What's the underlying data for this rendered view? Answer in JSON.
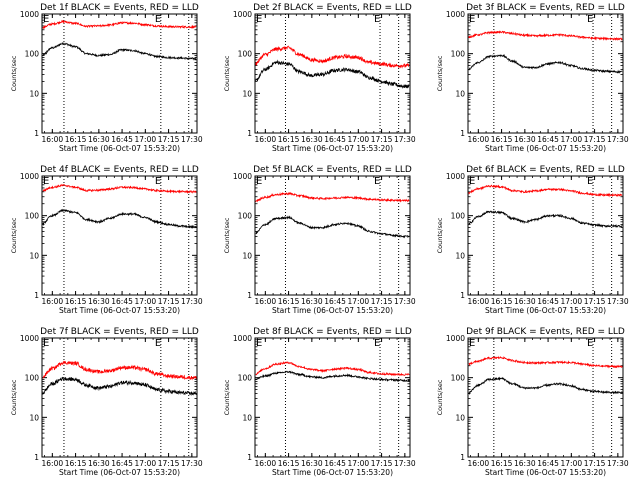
{
  "figure": {
    "ylabel": "Counts/sec",
    "xlabel": "Start Time (06-Oct-07 15:53:20)",
    "flag_labels": [
      "E",
      "E"
    ]
  },
  "colors": {
    "events": "#000000",
    "lld": "#ff0000",
    "axes": "#000000",
    "background": "#ffffff"
  },
  "chart_data": [
    {
      "type": "line",
      "title": "Det 1f BLACK = Events, RED = LLD",
      "xlabel": "Start Time (06-Oct-07 15:53:20)",
      "ylabel": "Counts/sec",
      "yscale": "log",
      "ylim": [
        1,
        1000
      ],
      "xlim": [
        "15:53:20",
        "17:33:20"
      ],
      "xticks": [
        "16:00",
        "16:15",
        "16:30",
        "16:45",
        "17:00",
        "17:15",
        "17:30"
      ],
      "yticks": [
        "1",
        "10",
        "100",
        "1000"
      ],
      "markers": [
        "16:07:30",
        "17:10:00",
        "17:28:00"
      ],
      "grid": false,
      "x": [
        "15:53",
        "16:00",
        "16:07",
        "16:15",
        "16:22",
        "16:30",
        "16:37",
        "16:45",
        "16:52",
        "17:00",
        "17:07",
        "17:15",
        "17:22",
        "17:30"
      ],
      "series": [
        {
          "name": "Events",
          "values": [
            90,
            140,
            180,
            150,
            100,
            90,
            95,
            125,
            120,
            100,
            85,
            80,
            78,
            75
          ]
        },
        {
          "name": "LLD",
          "values": [
            450,
            560,
            640,
            580,
            490,
            500,
            530,
            600,
            590,
            540,
            500,
            480,
            475,
            470
          ]
        }
      ]
    },
    {
      "type": "line",
      "title": "Det 2f BLACK = Events, RED = LLD",
      "xlabel": "Start Time (06-Oct-07 15:53:20)",
      "ylabel": "Counts/sec",
      "yscale": "log",
      "ylim": [
        1,
        1000
      ],
      "xlim": [
        "15:53:20",
        "17:33:20"
      ],
      "xticks": [
        "16:00",
        "16:15",
        "16:30",
        "16:45",
        "17:00",
        "17:15",
        "17:30"
      ],
      "yticks": [
        "1",
        "10",
        "100",
        "1000"
      ],
      "markers": [
        "16:13:00",
        "17:14:00",
        "17:26:00"
      ],
      "grid": false,
      "x": [
        "15:53",
        "16:00",
        "16:07",
        "16:15",
        "16:22",
        "16:30",
        "16:37",
        "16:45",
        "16:52",
        "17:00",
        "17:07",
        "17:15",
        "17:22",
        "17:30"
      ],
      "series": [
        {
          "name": "Events",
          "values": [
            20,
            40,
            60,
            55,
            35,
            28,
            30,
            38,
            40,
            35,
            25,
            20,
            17,
            15
          ]
        },
        {
          "name": "LLD",
          "values": [
            55,
            95,
            130,
            140,
            95,
            70,
            65,
            80,
            85,
            80,
            60,
            55,
            50,
            50
          ]
        }
      ]
    },
    {
      "type": "line",
      "title": "Det 3f BLACK = Events, RED = LLD",
      "xlabel": "Start Time (06-Oct-07 15:53:20)",
      "ylabel": "Counts/sec",
      "yscale": "log",
      "ylim": [
        1,
        1000
      ],
      "xlim": [
        "15:53:20",
        "17:33:20"
      ],
      "xticks": [
        "16:00",
        "16:15",
        "16:30",
        "16:45",
        "17:00",
        "17:15",
        "17:30"
      ],
      "yticks": [
        "1",
        "10",
        "100",
        "1000"
      ],
      "markers": [
        "16:10:00",
        "17:14:00",
        "17:26:00"
      ],
      "grid": false,
      "x": [
        "15:53",
        "16:00",
        "16:07",
        "16:15",
        "16:22",
        "16:30",
        "16:37",
        "16:45",
        "16:52",
        "17:00",
        "17:07",
        "17:15",
        "17:22",
        "17:30"
      ],
      "series": [
        {
          "name": "Events",
          "values": [
            40,
            60,
            85,
            90,
            65,
            45,
            45,
            55,
            60,
            50,
            42,
            38,
            36,
            35
          ]
        },
        {
          "name": "LLD",
          "values": [
            260,
            300,
            340,
            350,
            320,
            290,
            280,
            290,
            300,
            280,
            260,
            245,
            240,
            235
          ]
        }
      ]
    },
    {
      "type": "line",
      "title": "Det 4f BLACK = Events, RED = LLD",
      "xlabel": "Start Time (06-Oct-07 15:53:20)",
      "ylabel": "Counts/sec",
      "yscale": "log",
      "ylim": [
        1,
        1000
      ],
      "xlim": [
        "15:53:20",
        "17:33:20"
      ],
      "xticks": [
        "16:00",
        "16:15",
        "16:30",
        "16:45",
        "17:00",
        "17:15",
        "17:30"
      ],
      "yticks": [
        "1",
        "10",
        "100",
        "1000"
      ],
      "markers": [
        "16:07:30",
        "17:10:00",
        "17:28:00"
      ],
      "grid": false,
      "x": [
        "15:53",
        "16:00",
        "16:07",
        "16:15",
        "16:22",
        "16:30",
        "16:37",
        "16:45",
        "16:52",
        "17:00",
        "17:07",
        "17:15",
        "17:22",
        "17:30"
      ],
      "series": [
        {
          "name": "Events",
          "values": [
            60,
            100,
            135,
            120,
            80,
            70,
            85,
            110,
            110,
            90,
            70,
            60,
            55,
            52
          ]
        },
        {
          "name": "LLD",
          "values": [
            420,
            520,
            580,
            520,
            430,
            440,
            470,
            520,
            510,
            470,
            430,
            410,
            405,
            400
          ]
        }
      ]
    },
    {
      "type": "line",
      "title": "Det 5f BLACK = Events, RED = LLD",
      "xlabel": "Start Time (06-Oct-07 15:53:20)",
      "ylabel": "Counts/sec",
      "yscale": "log",
      "ylim": [
        1,
        1000
      ],
      "xlim": [
        "15:53:20",
        "17:33:20"
      ],
      "xticks": [
        "16:00",
        "16:15",
        "16:30",
        "16:45",
        "17:00",
        "17:15",
        "17:30"
      ],
      "yticks": [
        "1",
        "10",
        "100",
        "1000"
      ],
      "markers": [
        "16:13:00",
        "17:14:00",
        "17:26:00"
      ],
      "grid": false,
      "x": [
        "15:53",
        "16:00",
        "16:07",
        "16:15",
        "16:22",
        "16:30",
        "16:37",
        "16:45",
        "16:52",
        "17:00",
        "17:07",
        "17:15",
        "17:22",
        "17:30"
      ],
      "series": [
        {
          "name": "Events",
          "values": [
            35,
            60,
            85,
            90,
            65,
            50,
            50,
            60,
            65,
            55,
            40,
            35,
            32,
            30
          ]
        },
        {
          "name": "LLD",
          "values": [
            230,
            290,
            340,
            360,
            320,
            280,
            270,
            280,
            290,
            280,
            260,
            250,
            245,
            240
          ]
        }
      ]
    },
    {
      "type": "line",
      "title": "Det 6f BLACK = Events, RED = LLD",
      "xlabel": "Start Time (06-Oct-07 15:53:20)",
      "ylabel": "Counts/sec",
      "yscale": "log",
      "ylim": [
        1,
        1000
      ],
      "xlim": [
        "15:53:20",
        "17:33:20"
      ],
      "xticks": [
        "16:00",
        "16:15",
        "16:30",
        "16:45",
        "17:00",
        "17:15",
        "17:30"
      ],
      "yticks": [
        "1",
        "10",
        "100",
        "1000"
      ],
      "markers": [
        "16:10:00",
        "17:14:00",
        "17:26:00"
      ],
      "grid": false,
      "x": [
        "15:53",
        "16:00",
        "16:07",
        "16:15",
        "16:22",
        "16:30",
        "16:37",
        "16:45",
        "16:52",
        "17:00",
        "17:07",
        "17:15",
        "17:22",
        "17:30"
      ],
      "series": [
        {
          "name": "Events",
          "values": [
            60,
            95,
            125,
            120,
            85,
            70,
            80,
            100,
            100,
            85,
            65,
            58,
            55,
            55
          ]
        },
        {
          "name": "LLD",
          "values": [
            370,
            480,
            560,
            530,
            430,
            400,
            420,
            460,
            460,
            420,
            370,
            340,
            330,
            330
          ]
        }
      ]
    },
    {
      "type": "line",
      "title": "Det 7f BLACK = Events, RED = LLD",
      "xlabel": "Start Time (06-Oct-07 15:53:20)",
      "ylabel": "Counts/sec",
      "yscale": "log",
      "ylim": [
        1,
        1000
      ],
      "xlim": [
        "15:53:20",
        "17:33:20"
      ],
      "xticks": [
        "16:00",
        "16:15",
        "16:30",
        "16:45",
        "17:00",
        "17:15",
        "17:30"
      ],
      "yticks": [
        "1",
        "10",
        "100",
        "1000"
      ],
      "markers": [
        "16:07:30",
        "17:10:00",
        "17:28:00"
      ],
      "grid": false,
      "x": [
        "15:53",
        "16:00",
        "16:07",
        "16:15",
        "16:22",
        "16:30",
        "16:37",
        "16:45",
        "16:52",
        "17:00",
        "17:07",
        "17:15",
        "17:22",
        "17:30"
      ],
      "series": [
        {
          "name": "Events",
          "values": [
            40,
            70,
            95,
            90,
            65,
            55,
            60,
            75,
            75,
            65,
            50,
            45,
            42,
            40
          ]
        },
        {
          "name": "LLD",
          "values": [
            100,
            170,
            240,
            230,
            160,
            140,
            150,
            180,
            180,
            160,
            125,
            110,
            105,
            100
          ]
        }
      ]
    },
    {
      "type": "line",
      "title": "Det 8f BLACK = Events, RED = LLD",
      "xlabel": "Start Time (06-Oct-07 15:53:20)",
      "ylabel": "Counts/sec",
      "yscale": "log",
      "ylim": [
        1,
        1000
      ],
      "xlim": [
        "15:53:20",
        "17:33:20"
      ],
      "xticks": [
        "16:00",
        "16:15",
        "16:30",
        "16:45",
        "17:00",
        "17:15",
        "17:30"
      ],
      "yticks": [
        "1",
        "10",
        "100",
        "1000"
      ],
      "markers": [
        "16:13:00",
        "17:14:00",
        "17:26:00"
      ],
      "grid": false,
      "x": [
        "15:53",
        "16:00",
        "16:07",
        "16:15",
        "16:22",
        "16:30",
        "16:37",
        "16:45",
        "16:52",
        "17:00",
        "17:07",
        "17:15",
        "17:22",
        "17:30"
      ],
      "series": [
        {
          "name": "Events",
          "values": [
            90,
            110,
            130,
            140,
            120,
            105,
            100,
            110,
            115,
            105,
            95,
            90,
            88,
            85
          ]
        },
        {
          "name": "LLD",
          "values": [
            120,
            170,
            220,
            240,
            190,
            160,
            150,
            165,
            175,
            160,
            135,
            125,
            122,
            120
          ]
        }
      ]
    },
    {
      "type": "line",
      "title": "Det 9f BLACK = Events, RED = LLD",
      "xlabel": "Start Time (06-Oct-07 15:53:20)",
      "ylabel": "Counts/sec",
      "yscale": "log",
      "ylim": [
        1,
        1000
      ],
      "xlim": [
        "15:53:20",
        "17:33:20"
      ],
      "xticks": [
        "16:00",
        "16:15",
        "16:30",
        "16:45",
        "17:00",
        "17:15",
        "17:30"
      ],
      "yticks": [
        "1",
        "10",
        "100",
        "1000"
      ],
      "markers": [
        "16:10:00",
        "17:14:00",
        "17:26:00"
      ],
      "grid": false,
      "x": [
        "15:53",
        "16:00",
        "16:07",
        "16:15",
        "16:22",
        "16:30",
        "16:37",
        "16:45",
        "16:52",
        "17:00",
        "17:07",
        "17:15",
        "17:22",
        "17:30"
      ],
      "series": [
        {
          "name": "Events",
          "values": [
            40,
            65,
            90,
            95,
            70,
            55,
            55,
            65,
            70,
            62,
            50,
            45,
            43,
            42
          ]
        },
        {
          "name": "LLD",
          "values": [
            220,
            260,
            310,
            320,
            270,
            240,
            235,
            240,
            245,
            240,
            220,
            200,
            195,
            190
          ]
        }
      ]
    }
  ]
}
